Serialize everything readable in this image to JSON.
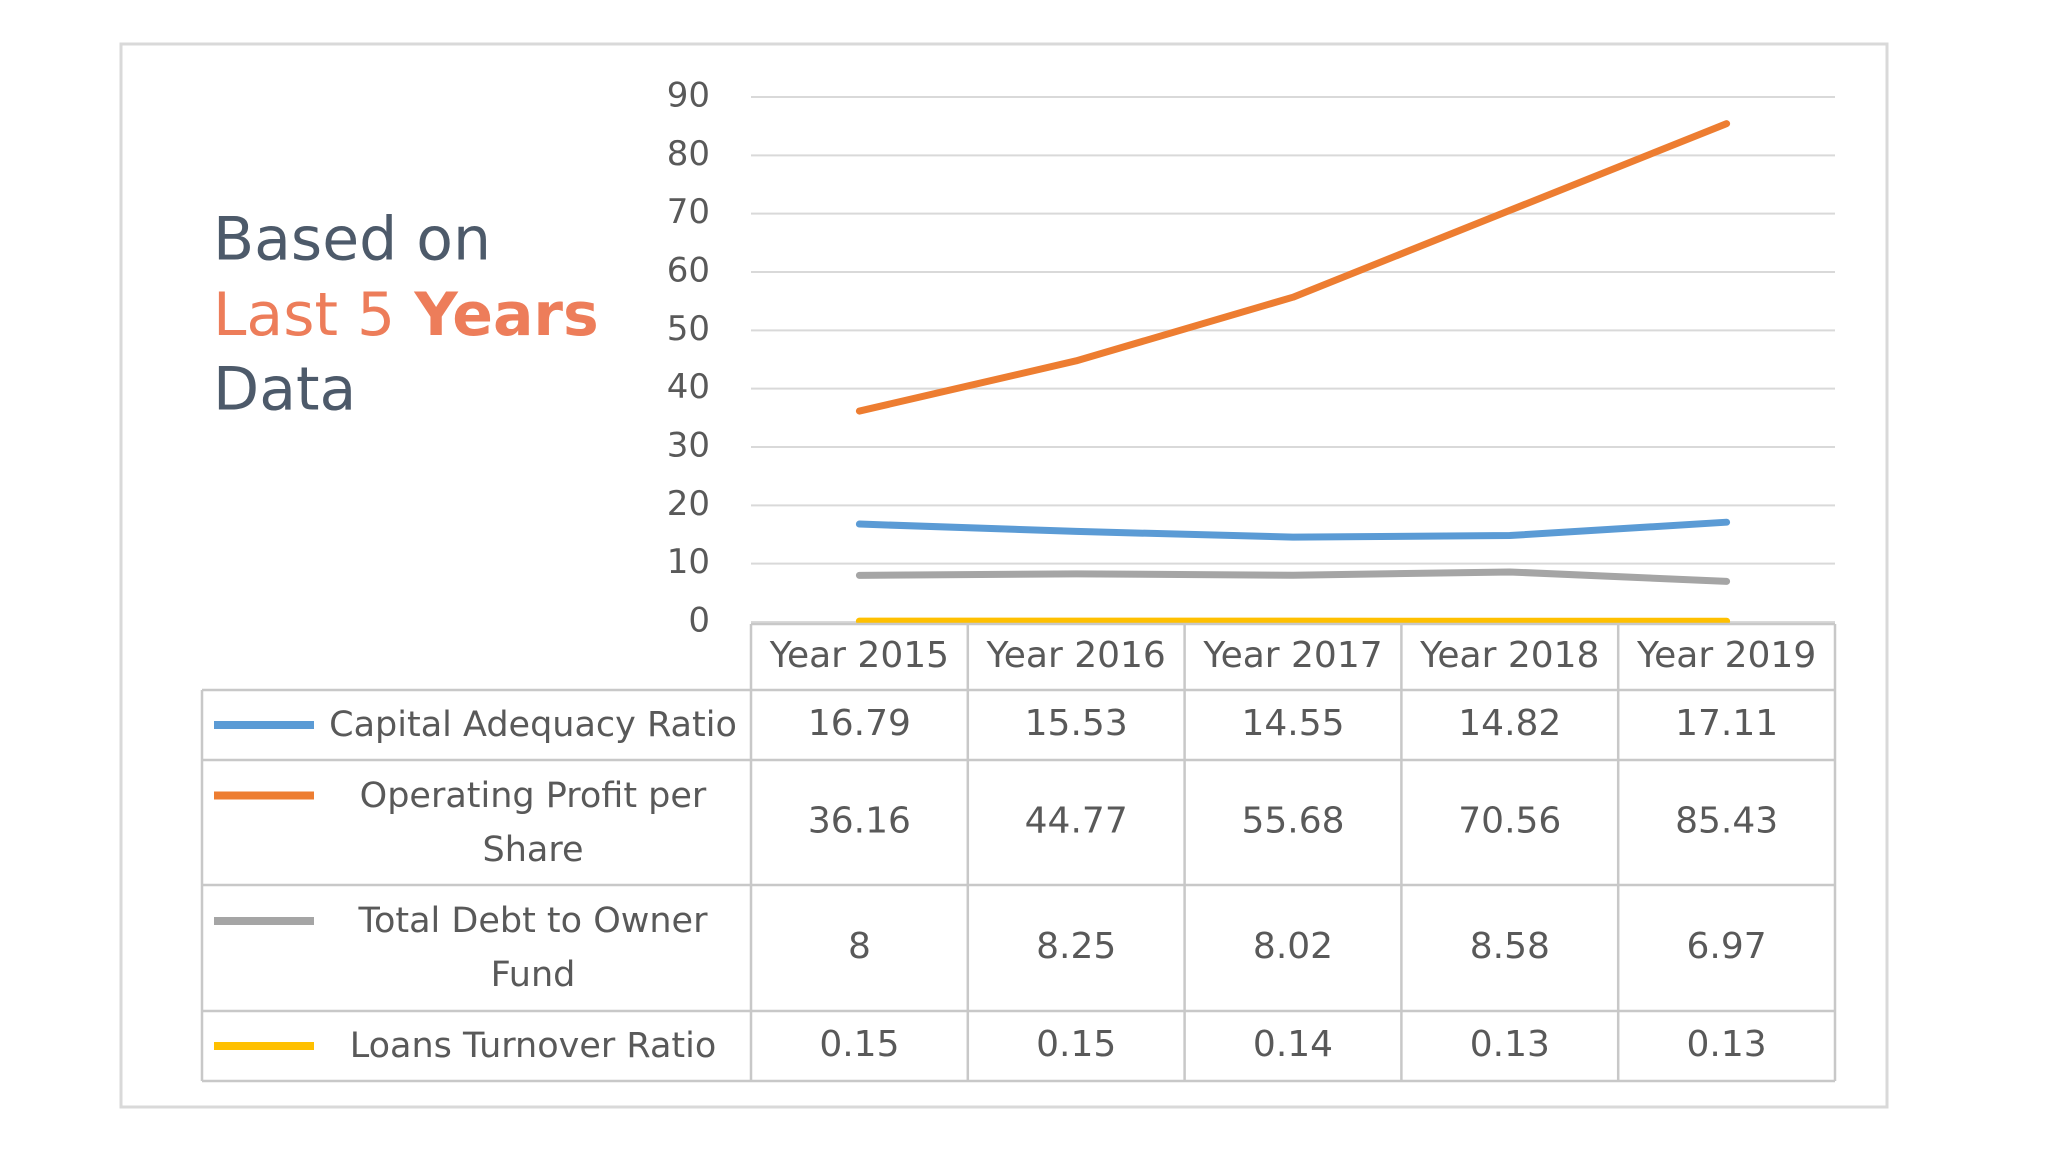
{
  "chart_data": {
    "type": "line",
    "annotation": {
      "line1": "Based on",
      "line2a": "Last 5",
      "line2b": "Years",
      "line3": "Data"
    },
    "categories": [
      "Year 2015",
      "Year 2016",
      "Year 2017",
      "Year 2018",
      "Year 2019"
    ],
    "series": [
      {
        "name": "Capital Adequacy Ratio",
        "color": "#5b9bd5",
        "values": [
          16.79,
          15.53,
          14.55,
          14.82,
          17.11
        ]
      },
      {
        "name": "Operating Profit per Share",
        "color": "#ed7d31",
        "values": [
          36.16,
          44.77,
          55.68,
          70.56,
          85.43
        ]
      },
      {
        "name": "Total Debt to Owner Fund",
        "color": "#a5a5a5",
        "values": [
          8,
          8.25,
          8.02,
          8.58,
          6.97
        ]
      },
      {
        "name": "Loans Turnover Ratio",
        "color": "#ffc000",
        "values": [
          0.15,
          0.15,
          0.14,
          0.13,
          0.13
        ]
      }
    ],
    "ylim": [
      0,
      90
    ],
    "yticks": [
      0,
      10,
      20,
      30,
      40,
      50,
      60,
      70,
      80,
      90
    ],
    "grid": true,
    "data_table": true
  }
}
